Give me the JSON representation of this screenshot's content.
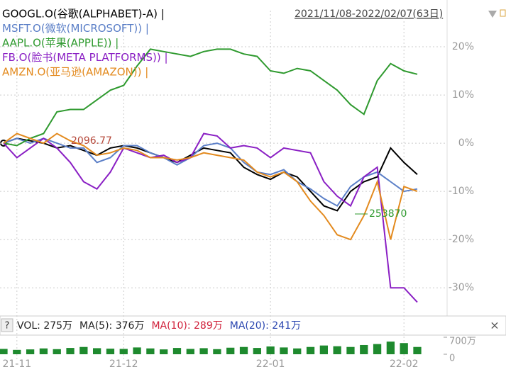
{
  "chart_data": [
    {
      "type": "line",
      "date_range": "2021/11/08-2022/02/07(63日)",
      "categories": [
        null,
        "21-11",
        null,
        null,
        null,
        null,
        null,
        null,
        null,
        "21-12",
        null,
        null,
        null,
        null,
        null,
        null,
        null,
        null,
        null,
        null,
        "22-01",
        null,
        null,
        null,
        null,
        null,
        null,
        null,
        null,
        null,
        "22-02",
        null
      ],
      "series": [
        {
          "name": "GOOGL.O(谷歌(ALPHABET)-A) |",
          "color": "#000000",
          "values": [
            0,
            1,
            0.5,
            0,
            -1,
            -0.5,
            -1.5,
            -2.5,
            -1,
            -0.5,
            -1,
            -2,
            -3,
            -4,
            -2.5,
            -1,
            -1.5,
            -2,
            -5,
            -6.5,
            -7.5,
            -6,
            -7,
            -10,
            -13,
            -14,
            -10,
            -8,
            -7,
            -1,
            -4,
            -6.5
          ]
        },
        {
          "name": "MSFT.O(微软(MICROSOFT)) |",
          "color": "#5b7fc7",
          "values": [
            0,
            1,
            0,
            1,
            0,
            -1,
            -1,
            -4,
            -3,
            -0.5,
            -0.5,
            -2,
            -3,
            -4.5,
            -3,
            -0.5,
            0,
            -1,
            -4,
            -6,
            -6.5,
            -5.5,
            -8,
            -9.5,
            -11.5,
            -13,
            -9,
            -7,
            -6,
            -8,
            -10,
            -9.5
          ]
        },
        {
          "name": "AAPL.O(苹果(APPLE)) |",
          "color": "#2f9a2f",
          "values": [
            0,
            -0.5,
            1,
            2,
            6.5,
            7,
            7,
            9,
            11,
            12,
            16,
            19.5,
            19,
            18.5,
            18,
            19,
            19.5,
            19.5,
            18.5,
            18,
            15,
            14.5,
            15.5,
            15,
            13,
            11,
            8,
            6,
            13,
            16.5,
            15,
            14.3
          ]
        },
        {
          "name": "FB.O(脸书(META PLATFORMS)) |",
          "color": "#8a1fc4",
          "values": [
            0,
            -3,
            -1,
            1,
            -1,
            -4,
            -8,
            -9.5,
            -6,
            -1,
            -2,
            -3,
            -2.5,
            -4,
            -3,
            2,
            1.5,
            -1,
            -0.5,
            -1,
            -3,
            -1,
            -1.5,
            -2,
            -8,
            -11,
            -13,
            -7,
            -5,
            -30,
            -30,
            -33
          ]
        },
        {
          "name": "AMZN.O(亚马逊(AMAZON)) |",
          "color": "#e38a1e",
          "values": [
            0,
            2,
            1,
            0,
            2,
            0.5,
            -0.5,
            -2.5,
            -2,
            -1,
            -1.5,
            -3,
            -3,
            -3.5,
            -3,
            -2,
            -2.5,
            -3,
            -3.5,
            -6,
            -7,
            -6,
            -8,
            -12,
            -15,
            -19,
            -20,
            -15,
            -8,
            -20,
            -9,
            -10
          ]
        }
      ],
      "annotations": [
        {
          "text": "2096.77",
          "color": "#b5483a"
        },
        {
          "text": "253870",
          "color": "#2f9a2f"
        }
      ],
      "ylim": [
        -35.7,
        27.5
      ],
      "yticks": [
        {
          "value": 20,
          "label": "20%"
        },
        {
          "value": 10,
          "label": "10%"
        },
        {
          "value": 0,
          "label": "0%"
        },
        {
          "value": -10,
          "label": "-10%"
        },
        {
          "value": -20,
          "label": "-20%"
        },
        {
          "value": -30,
          "label": "-30%"
        }
      ],
      "grid": true
    },
    {
      "type": "bar",
      "indicators": [
        "VOL: 275万",
        "MA(5): 376万",
        "MA(10): 289万",
        "MA(20): 241万"
      ],
      "indicator_colors": [
        "#222222",
        "#222222",
        "#d0203a",
        "#2a46b0"
      ],
      "color": "#1e8a2e",
      "values": [
        220,
        180,
        200,
        240,
        210,
        260,
        300,
        250,
        230,
        220,
        280,
        240,
        200,
        260,
        220,
        250,
        210,
        270,
        300,
        260,
        320,
        280,
        240,
        300,
        360,
        330,
        300,
        380,
        420,
        520,
        460,
        300
      ],
      "ylim": [
        0,
        700
      ],
      "yticks": [
        {
          "value": 700,
          "label": "700万"
        },
        0
      ]
    }
  ]
}
